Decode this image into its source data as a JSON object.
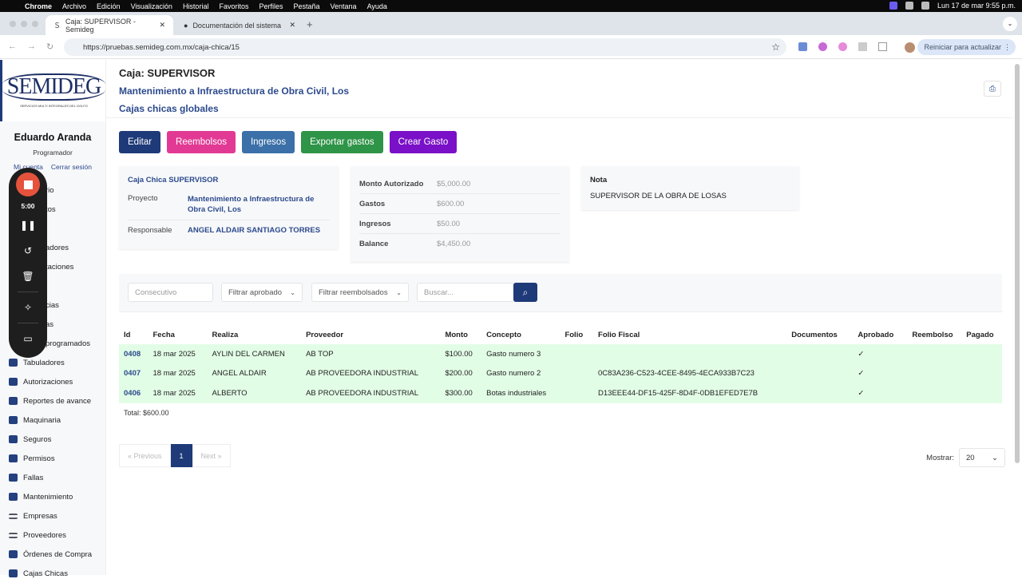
{
  "menubar": {
    "app": "Chrome",
    "items": [
      "Archivo",
      "Edición",
      "Visualización",
      "Historial",
      "Favoritos",
      "Perfiles",
      "Pestaña",
      "Ventana",
      "Ayuda"
    ],
    "clock": "Lun 17 de mar  9:55 p.m."
  },
  "browser": {
    "tabs": [
      {
        "title": "Caja: SUPERVISOR - Semideg"
      },
      {
        "title": "Documentación del sistema"
      }
    ],
    "url": "https://pruebas.semideg.com.mx/caja-chica/15",
    "update_label": "Reiniciar para actualizar"
  },
  "sidebar": {
    "logo": "SEMIDEG",
    "logo_sub": "SERVICIOS MULTI INTEGRALES DEL GOLFO",
    "user": {
      "name": "Eduardo Aranda",
      "role": "Programador",
      "account": "Mi cuenta",
      "logout": "Cerrar sesión"
    },
    "hidden_items": [
      "rio",
      "tos",
      "",
      "adores",
      "taciones",
      "",
      "cias",
      "as",
      "programados"
    ],
    "items": [
      {
        "label": "Tabuladores",
        "icon": "briefcase-icon"
      },
      {
        "label": "Autorizaciones",
        "icon": "check-file-icon"
      },
      {
        "label": "Reportes de avance",
        "icon": "edit-icon"
      },
      {
        "label": "Maquinaria",
        "icon": "truck-icon"
      },
      {
        "label": "Seguros",
        "icon": "file-icon"
      },
      {
        "label": "Permisos",
        "icon": "check-file-icon"
      },
      {
        "label": "Fallas",
        "icon": "truck-icon"
      },
      {
        "label": "Mantenimiento",
        "icon": "truck-icon"
      },
      {
        "label": "Empresas",
        "icon": "list-icon"
      },
      {
        "label": "Proveedores",
        "icon": "list-icon"
      },
      {
        "label": "Órdenes de Compra",
        "icon": "monitor-icon"
      },
      {
        "label": "Cajas Chicas",
        "icon": "monitor-icon"
      }
    ]
  },
  "recorder": {
    "time": "5:00"
  },
  "header": {
    "title": "Caja: SUPERVISOR",
    "project": "Mantenimiento a Infraestructura de Obra Civil, Los",
    "group": "Cajas chicas globales"
  },
  "actions": [
    {
      "label": "Editar",
      "color": "#1e3a78"
    },
    {
      "label": "Reembolsos",
      "color": "#e23a94"
    },
    {
      "label": "Ingresos",
      "color": "#3b70a8"
    },
    {
      "label": "Exportar gastos",
      "color": "#2e9448"
    },
    {
      "label": "Crear Gasto",
      "color": "#7a10c8"
    }
  ],
  "info": {
    "title": "Caja Chica SUPERVISOR",
    "proyecto_label": "Proyecto",
    "proyecto": "Mantenimiento a Infraestructura de Obra Civil, Los",
    "responsable_label": "Responsable",
    "responsable": "ANGEL ALDAIR SANTIAGO TORRES"
  },
  "money": [
    {
      "k": "Monto Autorizado",
      "v": "$5,000.00"
    },
    {
      "k": "Gastos",
      "v": "$600.00"
    },
    {
      "k": "Ingresos",
      "v": "$50.00"
    },
    {
      "k": "Balance",
      "v": "$4,450.00"
    }
  ],
  "nota": {
    "label": "Nota",
    "text": "SUPERVISOR DE LA OBRA DE LOSAS"
  },
  "filters": {
    "consecutivo": "Consecutivo",
    "aprobado": "Filtrar aprobado",
    "reembolsados": "Filtrar reembolsados",
    "buscar": "Buscar..."
  },
  "table": {
    "columns": [
      "Id",
      "Fecha",
      "Realiza",
      "Proveedor",
      "Monto",
      "Concepto",
      "Folio",
      "Folio Fiscal",
      "Documentos",
      "Aprobado",
      "Reembolso",
      "Pagado"
    ],
    "rows": [
      [
        "0408",
        "18 mar 2025",
        "AYLIN DEL CARMEN",
        "AB TOP",
        "$100.00",
        "Gasto numero 3",
        "",
        "",
        "",
        "✓",
        "",
        ""
      ],
      [
        "0407",
        "18 mar 2025",
        "ANGEL ALDAIR",
        "AB PROVEEDORA INDUSTRIAL",
        "$200.00",
        "Gasto numero 2",
        "",
        "0C83A236-C523-4CEE-8495-4ECA933B7C23",
        "",
        "✓",
        "",
        ""
      ],
      [
        "0406",
        "18 mar 2025",
        "ALBERTO",
        "AB PROVEEDORA INDUSTRIAL",
        "$300.00",
        "Botas industriales",
        "",
        "D13EEE44-DF15-425F-8D4F-0DB1EFED7E7B",
        "",
        "✓",
        "",
        ""
      ]
    ],
    "total": "Total: $600.00"
  },
  "pagination": {
    "prev": "« Previous",
    "page": "1",
    "next": "Next »",
    "show_label": "Mostrar:",
    "show_value": "20"
  }
}
